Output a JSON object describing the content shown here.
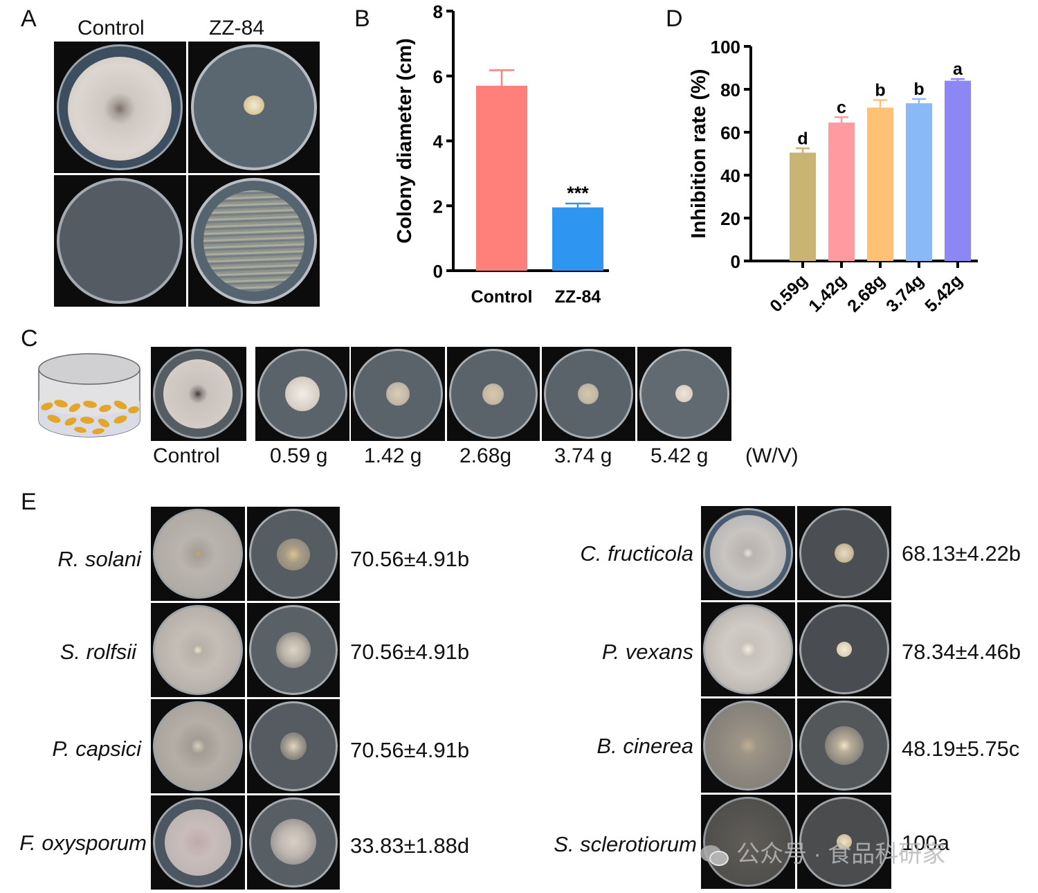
{
  "panels": {
    "A": "A",
    "B": "B",
    "C": "C",
    "D": "D",
    "E": "E"
  },
  "panel_a": {
    "col_labels": [
      "Control",
      "ZZ-84"
    ]
  },
  "panel_c": {
    "labels": [
      "Control",
      "0.59 g",
      "1.42 g",
      "2.68g",
      "3.74 g",
      "5.42 g"
    ],
    "unit": "(W/V)"
  },
  "panel_e": {
    "left": [
      {
        "species": "R. solani",
        "rate": "70.56±4.91b"
      },
      {
        "species": "S. rolfsii",
        "rate": "70.56±4.91b"
      },
      {
        "species": "P. capsici",
        "rate": "70.56±4.91b"
      },
      {
        "species": "F. oxysporum",
        "rate": "33.83±1.88d"
      }
    ],
    "right": [
      {
        "species": "C. fructicola",
        "rate": "68.13±4.22b"
      },
      {
        "species": "P. vexans",
        "rate": "78.34±4.46b"
      },
      {
        "species": "B. cinerea",
        "rate": "48.19±5.75c"
      },
      {
        "species": "S. sclerotiorum",
        "rate": "100a"
      }
    ]
  },
  "watermark": "公众号 · 食品科研家",
  "chart_data": [
    {
      "type": "bar",
      "panel": "B",
      "categories": [
        "Control",
        "ZZ-84"
      ],
      "values": [
        5.7,
        1.95
      ],
      "errors": [
        0.48,
        0.12
      ],
      "colors": [
        "#ff7f7a",
        "#2e95f0"
      ],
      "annotations": [
        "",
        "***"
      ],
      "ylabel": "Colony diameter (cm)",
      "ylim": [
        0,
        8
      ],
      "yticks": [
        0,
        2,
        4,
        6,
        8
      ]
    },
    {
      "type": "bar",
      "panel": "D",
      "categories": [
        "0.59g",
        "1.42g",
        "2.68g",
        "3.74g",
        "5.42g"
      ],
      "values": [
        50.5,
        64.5,
        71.5,
        73.5,
        84.0
      ],
      "errors": [
        2.0,
        2.5,
        3.5,
        2.0,
        0.8
      ],
      "colors": [
        "#c9b474",
        "#ff9aa0",
        "#ffc274",
        "#8ab9f7",
        "#8c87f4"
      ],
      "annotations": [
        "d",
        "c",
        "b",
        "b",
        "a"
      ],
      "ylabel": "Inhibition rate (%)",
      "ylim": [
        0,
        100
      ],
      "yticks": [
        0,
        20,
        40,
        60,
        80,
        100
      ]
    }
  ]
}
